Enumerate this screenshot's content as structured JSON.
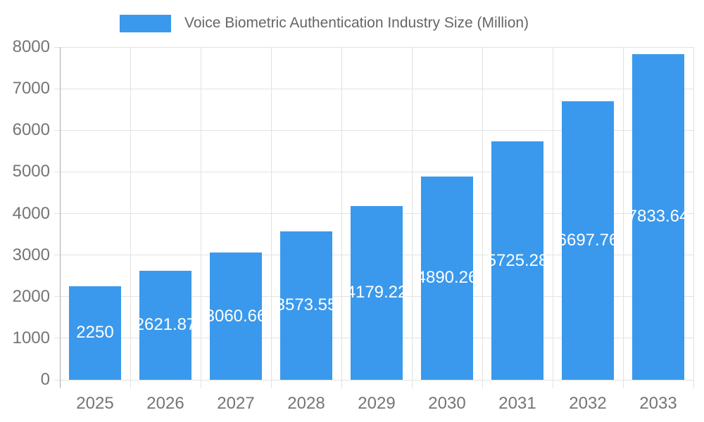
{
  "legend": {
    "label": "Voice Biometric Authentication Industry Size (Million)"
  },
  "colors": {
    "bar": "#3a99ec",
    "grid": "#e2e2e2",
    "axis_line": "#ababab",
    "axis_text": "#757575",
    "legend_text": "#666666",
    "bar_label_text": "#ffffff",
    "background": "#ffffff"
  },
  "chart_data": {
    "type": "bar",
    "title": "Voice Biometric Authentication Industry Size (Million)",
    "categories": [
      "2025",
      "2026",
      "2027",
      "2028",
      "2029",
      "2030",
      "2031",
      "2032",
      "2033"
    ],
    "values": [
      2250,
      2621.87,
      3060.66,
      3573.55,
      4179.22,
      4890.26,
      5725.28,
      6697.76,
      7833.64
    ],
    "value_labels": [
      "2250",
      "2621.87",
      "3060.66",
      "3573.55",
      "4179.22",
      "4890.26",
      "5725.28",
      "6697.76",
      "7833.64"
    ],
    "xlabel": "",
    "ylabel": "",
    "ylim": [
      0,
      8000
    ],
    "ytick_step": 1000,
    "yticks": [
      0,
      1000,
      2000,
      3000,
      4000,
      5000,
      6000,
      7000,
      8000
    ],
    "grid": true,
    "legend_position": "top",
    "value_labels_placement": "centered-inside-bar",
    "value_label_color": "#ffffff"
  }
}
